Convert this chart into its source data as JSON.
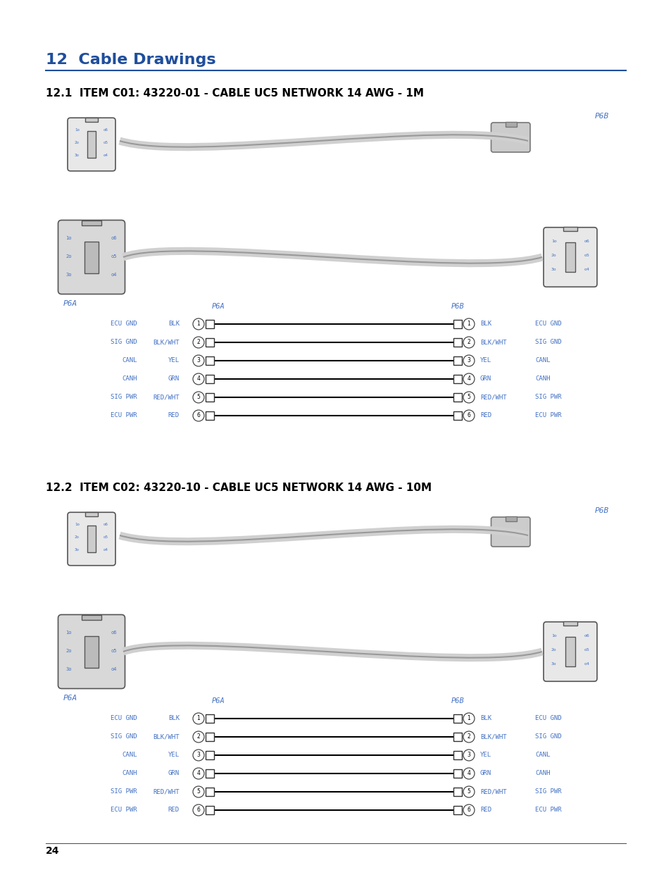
{
  "bg_color": "#ffffff",
  "page_num": "24",
  "chapter_title": "12  Cable Drawings",
  "section1_title": "12.1  ITEM C01: 43220-01 - CABLE UC5 NETWORK 14 AWG - 1M",
  "section2_title": "12.2  ITEM C02: 43220-10 - CABLE UC5 NETWORK 14 AWG - 10M",
  "blue_color": "#1f4e9c",
  "light_blue": "#4472c4",
  "dark_color": "#000000",
  "connector_color": "#888888",
  "wire_rows": [
    {
      "num": "1",
      "left_signal": "ECU GND",
      "left_wire": "BLK",
      "right_wire": "BLK",
      "right_signal": "ECU GND"
    },
    {
      "num": "2",
      "left_signal": "SIG GND",
      "left_wire": "BLK/WHT",
      "right_wire": "BLK/WHT",
      "right_signal": "SIG GND"
    },
    {
      "num": "3",
      "left_signal": "CANL",
      "left_wire": "YEL",
      "right_wire": "YEL",
      "right_signal": "CANL"
    },
    {
      "num": "4",
      "left_signal": "CANH",
      "left_wire": "GRN",
      "right_wire": "GRN",
      "right_signal": "CANH"
    },
    {
      "num": "5",
      "left_signal": "SIG PWR",
      "left_wire": "RED/WHT",
      "right_wire": "RED/WHT",
      "right_signal": "SIG PWR"
    },
    {
      "num": "6",
      "left_signal": "ECU PWR",
      "left_wire": "RED",
      "right_wire": "RED",
      "right_signal": "ECU PWR"
    }
  ]
}
